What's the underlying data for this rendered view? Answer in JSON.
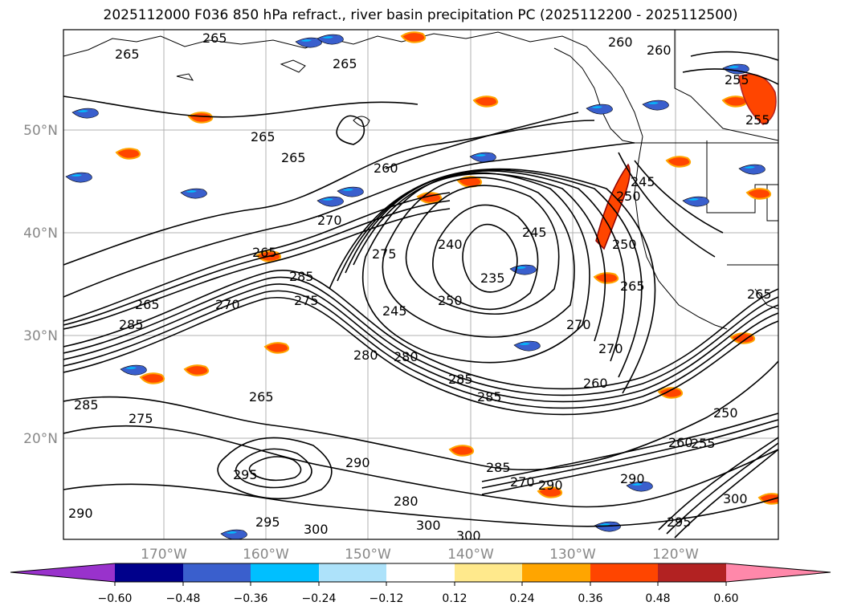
{
  "title": "2025112000 F036 850 hPa refract., river basin precipitation PC (2025112200 - 2025112500)",
  "lat_labels": [
    "50°N",
    "40°N",
    "30°N",
    "20°N"
  ],
  "lon_labels": [
    "170°W",
    "160°W",
    "150°W",
    "140°W",
    "130°W",
    "120°W"
  ],
  "colorbar": {
    "colors": [
      "#9932CC",
      "#00008B",
      "#3A5FCD",
      "#00BFFF",
      "#ADE2FA",
      "#FFFFFF",
      "#FFE98C",
      "#FFA500",
      "#FF4500",
      "#B22222",
      "#FF88AA"
    ],
    "ticks": [
      "−0.60",
      "−0.48",
      "−0.36",
      "−0.24",
      "−0.12",
      "0.12",
      "0.24",
      "0.36",
      "0.48",
      "0.60"
    ]
  },
  "contour_labels": [
    "265",
    "265",
    "265",
    "265",
    "265",
    "260",
    "255",
    "250",
    "260",
    "265",
    "270",
    "260",
    "270",
    "265",
    "240",
    "245",
    "235",
    "250",
    "275",
    "285",
    "245",
    "250",
    "255",
    "265",
    "270",
    "270",
    "260",
    "280",
    "285",
    "280",
    "275",
    "285",
    "290",
    "285",
    "275",
    "285",
    "265",
    "290",
    "295",
    "295",
    "300",
    "300",
    "300",
    "290",
    "280",
    "270",
    "285",
    "290",
    "295",
    "300",
    "250",
    "245",
    "260",
    "255",
    "265"
  ]
}
